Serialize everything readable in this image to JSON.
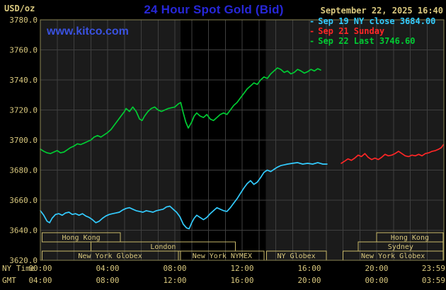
{
  "page": {
    "units_label": "USD/oz",
    "title": "24 Hour Spot Gold (Bid)",
    "title_color": "#2727d8",
    "datetime": "September 22, 2025 16:40",
    "watermark": "www.kitco.com",
    "watermark_color": "#3a52e0",
    "text_color": "#d9c87e",
    "background": "#000000"
  },
  "legend": {
    "items": [
      {
        "marker": "-",
        "label": "Sep 19 NY close 3684.00",
        "color": "#33ccff"
      },
      {
        "marker": "-",
        "label": "Sep 21 Sunday",
        "color": "#ff2626"
      },
      {
        "marker": "-",
        "label": "Sep 22 Last 3746.60",
        "color": "#00cc33"
      }
    ]
  },
  "axes": {
    "ny_label": "NY Time",
    "gmt_label": "GMT",
    "y_ticks": [
      "3780.0",
      "3760.0",
      "3740.0",
      "3720.0",
      "3700.0",
      "3680.0",
      "3660.0",
      "3640.0",
      "3620.0"
    ],
    "ny_ticks": [
      {
        "label": "00:00",
        "hour": 0
      },
      {
        "label": "04:00",
        "hour": 4
      },
      {
        "label": "08:00",
        "hour": 8
      },
      {
        "label": "12:00",
        "hour": 12
      },
      {
        "label": "16:00",
        "hour": 16
      },
      {
        "label": "20:00",
        "hour": 20
      },
      {
        "label": "23:59",
        "hour": 23.98
      }
    ],
    "gmt_ticks": [
      {
        "label": "04:00",
        "hour": 0
      },
      {
        "label": "08:00",
        "hour": 4
      },
      {
        "label": "12:00",
        "hour": 8
      },
      {
        "label": "16:00",
        "hour": 12
      },
      {
        "label": "20:00",
        "hour": 16
      },
      {
        "label": "00:00",
        "hour": 20
      },
      {
        "label": "03:59",
        "hour": 23.98
      }
    ]
  },
  "sessions": [
    {
      "label": "Hong Kong",
      "row": 0,
      "start_hour": 0.1,
      "end_hour": 4.75
    },
    {
      "label": "Hong Kong",
      "row": 0,
      "start_hour": 20.0,
      "end_hour": 23.95
    },
    {
      "label": "London",
      "row": 1,
      "start_hour": 3.0,
      "end_hour": 11.6
    },
    {
      "label": "Sydney",
      "row": 1,
      "start_hour": 18.9,
      "end_hour": 23.95
    },
    {
      "label": "New York Globex",
      "row": 2,
      "start_hour": 0.1,
      "end_hour": 8.2
    },
    {
      "label": "New York NYMEX",
      "row": 2,
      "start_hour": 8.33,
      "end_hour": 13.3
    },
    {
      "label": "NY Globex",
      "row": 2,
      "start_hour": 13.45,
      "end_hour": 17.0
    },
    {
      "label": "New York Globex",
      "row": 2,
      "start_hour": 18.0,
      "end_hour": 23.95
    }
  ],
  "chart_style": {
    "plot_bg": "#1b1b1b",
    "band_color": "#000000",
    "grid_color": "#3f3f3f",
    "border_color": "#8a8452",
    "box_color": "#c9b96a",
    "text_color": "#d9c87e"
  },
  "chart_data": {
    "type": "line",
    "title": "24 Hour Spot Gold (Bid)",
    "xlabel": "NY Time (hours 0-24)",
    "ylabel": "USD/oz",
    "xlim": [
      0,
      24
    ],
    "ylim": [
      3620,
      3780
    ],
    "y_gridline_step": 20,
    "x_gridline_step_hours": 1,
    "grid": true,
    "legend_position": "top-right",
    "nymex_shaded_band_hours": [
      8.33,
      13.4
    ],
    "series": [
      {
        "name": "Sep 19 NY close 3684.00",
        "color": "#33ccff",
        "points": [
          [
            0,
            3653
          ],
          [
            0.2,
            3650
          ],
          [
            0.4,
            3646
          ],
          [
            0.55,
            3645
          ],
          [
            0.7,
            3648
          ],
          [
            0.9,
            3650.5
          ],
          [
            1.1,
            3651
          ],
          [
            1.3,
            3650
          ],
          [
            1.5,
            3651.5
          ],
          [
            1.7,
            3652
          ],
          [
            1.9,
            3650.5
          ],
          [
            2.1,
            3651
          ],
          [
            2.3,
            3650
          ],
          [
            2.5,
            3651
          ],
          [
            2.7,
            3649.5
          ],
          [
            2.9,
            3648.5
          ],
          [
            3.1,
            3647
          ],
          [
            3.3,
            3645
          ],
          [
            3.5,
            3646
          ],
          [
            3.7,
            3648
          ],
          [
            3.9,
            3649.5
          ],
          [
            4.1,
            3650.5
          ],
          [
            4.3,
            3651
          ],
          [
            4.5,
            3651.5
          ],
          [
            4.7,
            3652
          ],
          [
            4.9,
            3653.5
          ],
          [
            5.1,
            3654.5
          ],
          [
            5.3,
            3655
          ],
          [
            5.5,
            3654
          ],
          [
            5.7,
            3653
          ],
          [
            5.9,
            3652.5
          ],
          [
            6.1,
            3652
          ],
          [
            6.3,
            3653
          ],
          [
            6.5,
            3652.5
          ],
          [
            6.7,
            3652
          ],
          [
            6.9,
            3653
          ],
          [
            7.1,
            3653.5
          ],
          [
            7.3,
            3654
          ],
          [
            7.5,
            3655.5
          ],
          [
            7.7,
            3656
          ],
          [
            7.9,
            3654
          ],
          [
            8.1,
            3652
          ],
          [
            8.3,
            3649
          ],
          [
            8.5,
            3644
          ],
          [
            8.7,
            3641.5
          ],
          [
            8.85,
            3641
          ],
          [
            9,
            3645
          ],
          [
            9.15,
            3648
          ],
          [
            9.3,
            3650
          ],
          [
            9.5,
            3648.5
          ],
          [
            9.7,
            3647
          ],
          [
            9.9,
            3648.5
          ],
          [
            10.1,
            3651
          ],
          [
            10.3,
            3653
          ],
          [
            10.5,
            3655
          ],
          [
            10.7,
            3654
          ],
          [
            10.9,
            3653
          ],
          [
            11.1,
            3652.5
          ],
          [
            11.3,
            3655
          ],
          [
            11.5,
            3658
          ],
          [
            11.7,
            3661
          ],
          [
            11.9,
            3664.5
          ],
          [
            12.1,
            3668
          ],
          [
            12.3,
            3671
          ],
          [
            12.5,
            3673
          ],
          [
            12.7,
            3670.5
          ],
          [
            12.9,
            3672
          ],
          [
            13.1,
            3675
          ],
          [
            13.3,
            3678.5
          ],
          [
            13.5,
            3680
          ],
          [
            13.7,
            3679
          ],
          [
            13.9,
            3680.5
          ],
          [
            14.1,
            3682
          ],
          [
            14.3,
            3683
          ],
          [
            14.5,
            3683.5
          ],
          [
            14.7,
            3684
          ],
          [
            15,
            3684.5
          ],
          [
            15.3,
            3685
          ],
          [
            15.6,
            3684
          ],
          [
            15.9,
            3684.5
          ],
          [
            16.2,
            3684
          ],
          [
            16.5,
            3685
          ],
          [
            16.8,
            3684
          ],
          [
            17.05,
            3684
          ]
        ]
      },
      {
        "name": "Sep 21 Sunday",
        "color": "#ff2626",
        "points": [
          [
            17.9,
            3684.5
          ],
          [
            18.1,
            3686
          ],
          [
            18.3,
            3687.5
          ],
          [
            18.5,
            3686.5
          ],
          [
            18.7,
            3688
          ],
          [
            18.9,
            3690
          ],
          [
            19.1,
            3689
          ],
          [
            19.3,
            3691
          ],
          [
            19.5,
            3688.5
          ],
          [
            19.7,
            3687
          ],
          [
            19.9,
            3688
          ],
          [
            20.1,
            3687
          ],
          [
            20.3,
            3688.5
          ],
          [
            20.5,
            3690.5
          ],
          [
            20.7,
            3689.5
          ],
          [
            20.9,
            3690
          ],
          [
            21.1,
            3691
          ],
          [
            21.3,
            3692.5
          ],
          [
            21.5,
            3691
          ],
          [
            21.7,
            3689.5
          ],
          [
            21.9,
            3689
          ],
          [
            22.1,
            3690
          ],
          [
            22.3,
            3689.5
          ],
          [
            22.5,
            3690.5
          ],
          [
            22.7,
            3689.5
          ],
          [
            22.9,
            3691
          ],
          [
            23.1,
            3691.5
          ],
          [
            23.3,
            3692.5
          ],
          [
            23.5,
            3693
          ],
          [
            23.7,
            3694
          ],
          [
            23.85,
            3695
          ],
          [
            23.98,
            3697
          ]
        ]
      },
      {
        "name": "Sep 22 Last 3746.60",
        "color": "#00cc33",
        "points": [
          [
            0,
            3694
          ],
          [
            0.2,
            3692.5
          ],
          [
            0.4,
            3691.5
          ],
          [
            0.6,
            3691
          ],
          [
            0.8,
            3692
          ],
          [
            1,
            3693
          ],
          [
            1.2,
            3691.5
          ],
          [
            1.4,
            3692
          ],
          [
            1.6,
            3693.5
          ],
          [
            1.8,
            3695
          ],
          [
            2,
            3696
          ],
          [
            2.2,
            3697.5
          ],
          [
            2.4,
            3697
          ],
          [
            2.6,
            3698
          ],
          [
            2.8,
            3699
          ],
          [
            3,
            3700
          ],
          [
            3.2,
            3702
          ],
          [
            3.4,
            3703
          ],
          [
            3.6,
            3702
          ],
          [
            3.8,
            3703.5
          ],
          [
            4,
            3705
          ],
          [
            4.2,
            3707
          ],
          [
            4.4,
            3710
          ],
          [
            4.6,
            3713
          ],
          [
            4.8,
            3716
          ],
          [
            5,
            3719
          ],
          [
            5.1,
            3721
          ],
          [
            5.3,
            3719
          ],
          [
            5.5,
            3722
          ],
          [
            5.7,
            3719
          ],
          [
            5.9,
            3714
          ],
          [
            6.05,
            3713
          ],
          [
            6.2,
            3716
          ],
          [
            6.4,
            3719
          ],
          [
            6.6,
            3721
          ],
          [
            6.8,
            3722
          ],
          [
            7,
            3720
          ],
          [
            7.2,
            3719
          ],
          [
            7.4,
            3720
          ],
          [
            7.6,
            3721
          ],
          [
            7.8,
            3721.5
          ],
          [
            8,
            3722
          ],
          [
            8.2,
            3724
          ],
          [
            8.35,
            3725
          ],
          [
            8.5,
            3718
          ],
          [
            8.65,
            3712
          ],
          [
            8.8,
            3708
          ],
          [
            9,
            3712
          ],
          [
            9.15,
            3716
          ],
          [
            9.3,
            3718
          ],
          [
            9.5,
            3716
          ],
          [
            9.7,
            3715
          ],
          [
            9.9,
            3717
          ],
          [
            10.1,
            3714
          ],
          [
            10.3,
            3713
          ],
          [
            10.5,
            3715
          ],
          [
            10.7,
            3717
          ],
          [
            10.9,
            3718
          ],
          [
            11.1,
            3717
          ],
          [
            11.3,
            3720
          ],
          [
            11.5,
            3723
          ],
          [
            11.7,
            3725
          ],
          [
            11.9,
            3728
          ],
          [
            12.1,
            3731
          ],
          [
            12.3,
            3734
          ],
          [
            12.5,
            3736
          ],
          [
            12.7,
            3738
          ],
          [
            12.9,
            3737
          ],
          [
            13.1,
            3740
          ],
          [
            13.3,
            3742
          ],
          [
            13.5,
            3741
          ],
          [
            13.7,
            3744
          ],
          [
            13.9,
            3746
          ],
          [
            14.1,
            3748
          ],
          [
            14.3,
            3747
          ],
          [
            14.5,
            3745
          ],
          [
            14.7,
            3746
          ],
          [
            14.9,
            3744
          ],
          [
            15.1,
            3745
          ],
          [
            15.3,
            3747
          ],
          [
            15.5,
            3746
          ],
          [
            15.7,
            3744.5
          ],
          [
            15.9,
            3745.5
          ],
          [
            16.1,
            3747
          ],
          [
            16.3,
            3746
          ],
          [
            16.5,
            3747.5
          ],
          [
            16.67,
            3746.6
          ]
        ]
      }
    ]
  }
}
